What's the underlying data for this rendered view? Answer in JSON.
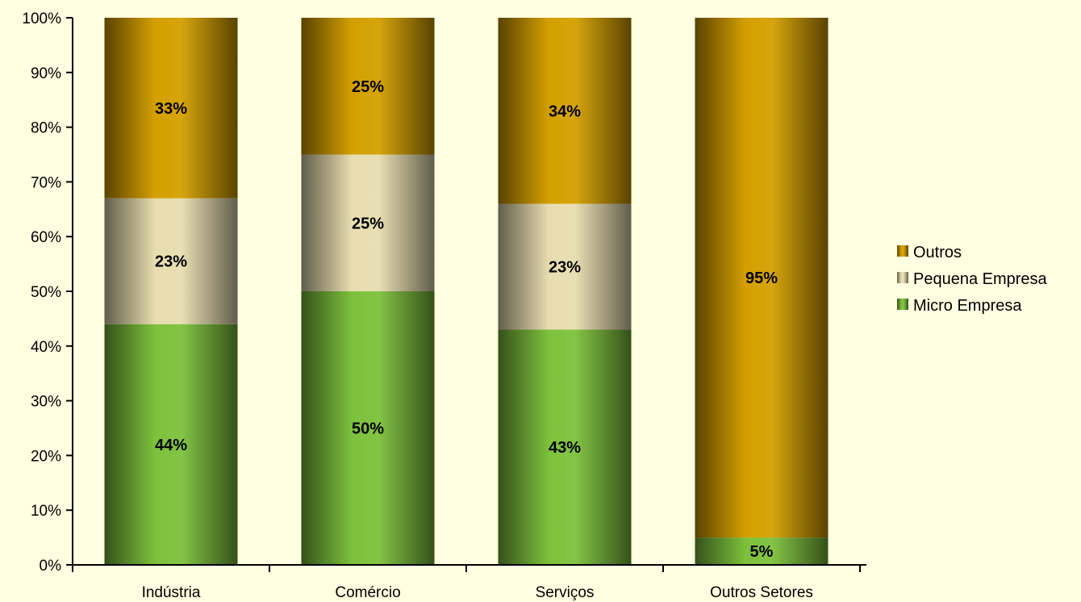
{
  "chart_data": {
    "type": "bar",
    "stacked": "percent",
    "categories": [
      "Indústria",
      "Comércio",
      "Serviços",
      "Outros Setores"
    ],
    "series": [
      {
        "name": "Micro Empresa",
        "values": [
          44,
          50,
          43,
          5
        ],
        "labels": [
          "44%",
          "50%",
          "43%",
          "5%"
        ],
        "color": "#7DC13C"
      },
      {
        "name": "Pequena Empresa",
        "values": [
          23,
          25,
          23,
          0
        ],
        "labels": [
          "23%",
          "25%",
          "23%",
          ""
        ],
        "color": "#E8DDB0"
      },
      {
        "name": "Outros",
        "values": [
          33,
          25,
          34,
          95
        ],
        "labels": [
          "33%",
          "25%",
          "34%",
          "95%"
        ],
        "color": "#D4A000"
      }
    ],
    "y_ticks": [
      "0%",
      "10%",
      "20%",
      "30%",
      "40%",
      "50%",
      "60%",
      "70%",
      "80%",
      "90%",
      "100%"
    ],
    "ylim": [
      0,
      100
    ],
    "legend_position": "right",
    "legend_order": [
      "Outros",
      "Pequena Empresa",
      "Micro Empresa"
    ],
    "grid": false,
    "background_color": "#FFFFE1"
  }
}
